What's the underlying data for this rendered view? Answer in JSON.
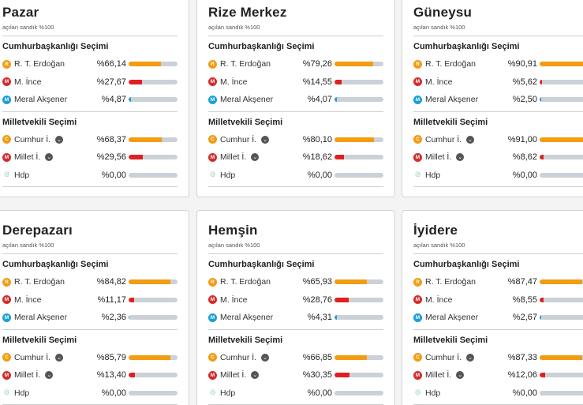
{
  "labels": {
    "subtitle": "açılan sandık %100",
    "cb_title": "Cumhurbaşkanlığı Seçimi",
    "mv_title": "Milletvekili Seçimi"
  },
  "colors": {
    "yellow": "#f39c12",
    "red": "#e02020",
    "blue": "#1aa0d8",
    "green": "#3a9b48"
  },
  "cards": [
    {
      "city": "Pazar",
      "cb": [
        {
          "badge": "R",
          "name": "R. T. Erdoğan",
          "pct_text": "%66,14",
          "value": 66.14
        },
        {
          "badge": "M",
          "name": "M. İnce",
          "pct_text": "%27,67",
          "value": 27.67
        },
        {
          "badge": "M",
          "name": "Meral Akşener",
          "pct_text": "%4,87",
          "value": 4.87
        }
      ],
      "mv": [
        {
          "badge": "C",
          "name": "Cumhur İ.",
          "pct_text": "%68,37",
          "value": 68.37
        },
        {
          "badge": "M",
          "name": "Millet İ.",
          "pct_text": "%29,56",
          "value": 29.56
        },
        {
          "badge": "♲",
          "name": "Hdp",
          "pct_text": "%0,00",
          "value": 0
        }
      ]
    },
    {
      "city": "Rize Merkez",
      "cb": [
        {
          "badge": "R",
          "name": "R. T. Erdoğan",
          "pct_text": "%79,26",
          "value": 79.26
        },
        {
          "badge": "M",
          "name": "M. İnce",
          "pct_text": "%14,55",
          "value": 14.55
        },
        {
          "badge": "M",
          "name": "Meral Akşener",
          "pct_text": "%4,07",
          "value": 4.07
        }
      ],
      "mv": [
        {
          "badge": "C",
          "name": "Cumhur İ.",
          "pct_text": "%80,10",
          "value": 80.1
        },
        {
          "badge": "M",
          "name": "Millet İ.",
          "pct_text": "%18,62",
          "value": 18.62
        },
        {
          "badge": "♲",
          "name": "Hdp",
          "pct_text": "%0,00",
          "value": 0
        }
      ]
    },
    {
      "city": "Güneysu",
      "cb": [
        {
          "badge": "R",
          "name": "R. T. Erdoğan",
          "pct_text": "%90,91",
          "value": 90.91
        },
        {
          "badge": "M",
          "name": "M. İnce",
          "pct_text": "%5,62",
          "value": 5.62
        },
        {
          "badge": "M",
          "name": "Meral Akşener",
          "pct_text": "%2,50",
          "value": 2.5
        }
      ],
      "mv": [
        {
          "badge": "C",
          "name": "Cumhur İ.",
          "pct_text": "%91,00",
          "value": 91.0
        },
        {
          "badge": "M",
          "name": "Millet İ.",
          "pct_text": "%8,62",
          "value": 8.62
        },
        {
          "badge": "♲",
          "name": "Hdp",
          "pct_text": "%0,00",
          "value": 0
        }
      ]
    },
    {
      "city": "Derepazarı",
      "cb": [
        {
          "badge": "R",
          "name": "R. T. Erdoğan",
          "pct_text": "%84,82",
          "value": 84.82
        },
        {
          "badge": "M",
          "name": "M. İnce",
          "pct_text": "%11,17",
          "value": 11.17
        },
        {
          "badge": "M",
          "name": "Meral Akşener",
          "pct_text": "%2,36",
          "value": 2.36
        }
      ],
      "mv": [
        {
          "badge": "C",
          "name": "Cumhur İ.",
          "pct_text": "%85,79",
          "value": 85.79
        },
        {
          "badge": "M",
          "name": "Millet İ.",
          "pct_text": "%13,40",
          "value": 13.4
        },
        {
          "badge": "♲",
          "name": "Hdp",
          "pct_text": "%0,00",
          "value": 0
        }
      ]
    },
    {
      "city": "Hemşin",
      "cb": [
        {
          "badge": "R",
          "name": "R. T. Erdoğan",
          "pct_text": "%65,93",
          "value": 65.93
        },
        {
          "badge": "M",
          "name": "M. İnce",
          "pct_text": "%28,76",
          "value": 28.76
        },
        {
          "badge": "M",
          "name": "Meral Akşener",
          "pct_text": "%4,31",
          "value": 4.31
        }
      ],
      "mv": [
        {
          "badge": "C",
          "name": "Cumhur İ.",
          "pct_text": "%66,85",
          "value": 66.85
        },
        {
          "badge": "M",
          "name": "Millet İ.",
          "pct_text": "%30,35",
          "value": 30.35
        },
        {
          "badge": "♲",
          "name": "Hdp",
          "pct_text": "%0,00",
          "value": 0
        }
      ]
    },
    {
      "city": "İyidere",
      "cb": [
        {
          "badge": "R",
          "name": "R. T. Erdoğan",
          "pct_text": "%87,47",
          "value": 87.47
        },
        {
          "badge": "M",
          "name": "M. İnce",
          "pct_text": "%8,55",
          "value": 8.55
        },
        {
          "badge": "M",
          "name": "Meral Akşener",
          "pct_text": "%2,67",
          "value": 2.67
        }
      ],
      "mv": [
        {
          "badge": "C",
          "name": "Cumhur İ.",
          "pct_text": "%87,33",
          "value": 87.33
        },
        {
          "badge": "M",
          "name": "Millet İ.",
          "pct_text": "%12,06",
          "value": 12.06
        },
        {
          "badge": "♲",
          "name": "Hdp",
          "pct_text": "%0,00",
          "value": 0
        }
      ]
    }
  ]
}
